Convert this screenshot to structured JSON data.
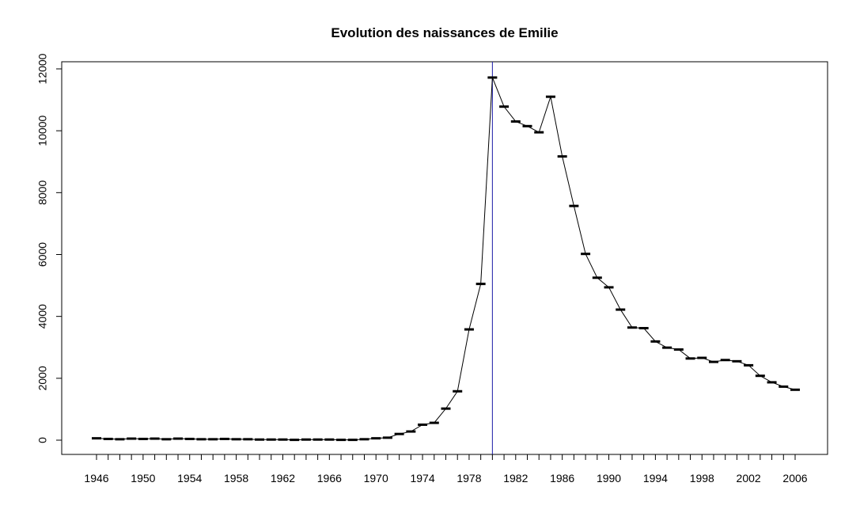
{
  "chart_data": {
    "type": "line",
    "title": "Evolution des naissances de Emilie",
    "xlabel": "",
    "ylabel": "",
    "xlim": [
      1946,
      2006
    ],
    "ylim": [
      0,
      12000
    ],
    "x_tick_labels": [
      "1946",
      "1950",
      "1954",
      "1958",
      "1962",
      "1966",
      "1970",
      "1974",
      "1978",
      "1982",
      "1986",
      "1990",
      "1994",
      "1998",
      "2002",
      "2006"
    ],
    "y_tick_labels": [
      "0",
      "2000",
      "4000",
      "6000",
      "8000",
      "10000",
      "12000"
    ],
    "reference_line_x": 1980,
    "colors": {
      "series": "#000000",
      "reference_line": "#1a1aa6"
    },
    "grid": false,
    "legend": "none",
    "x": [
      1946,
      1947,
      1948,
      1949,
      1950,
      1951,
      1952,
      1953,
      1954,
      1955,
      1956,
      1957,
      1958,
      1959,
      1960,
      1961,
      1962,
      1963,
      1964,
      1965,
      1966,
      1967,
      1968,
      1969,
      1970,
      1971,
      1972,
      1973,
      1974,
      1975,
      1976,
      1977,
      1978,
      1979,
      1980,
      1981,
      1982,
      1983,
      1984,
      1985,
      1986,
      1987,
      1988,
      1989,
      1990,
      1991,
      1992,
      1993,
      1994,
      1995,
      1996,
      1997,
      1998,
      1999,
      2000,
      2001,
      2002,
      2003,
      2004,
      2005,
      2006
    ],
    "series": [
      {
        "values": [
          60,
          40,
          30,
          50,
          40,
          50,
          30,
          50,
          40,
          30,
          30,
          40,
          30,
          30,
          20,
          20,
          20,
          10,
          20,
          20,
          20,
          10,
          10,
          30,
          60,
          80,
          200,
          280,
          500,
          560,
          1020,
          1580,
          3580,
          5050,
          11720,
          10780,
          10300,
          10150,
          9950,
          11100,
          9170,
          7570,
          6020,
          5250,
          4940,
          4220,
          3640,
          3620,
          3190,
          2990,
          2930,
          2640,
          2660,
          2530,
          2590,
          2550,
          2420,
          2080,
          1870,
          1730,
          1630
        ]
      }
    ]
  }
}
